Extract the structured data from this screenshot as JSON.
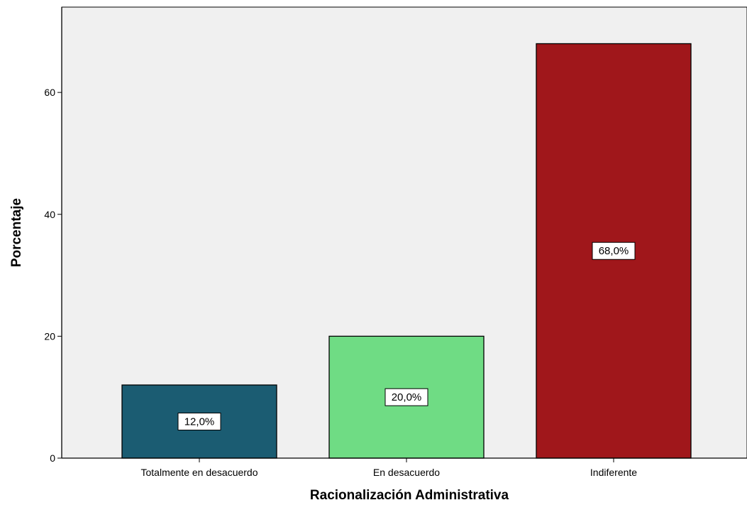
{
  "chart_data": {
    "type": "bar",
    "xlabel": "Racionalización Administrativa",
    "ylabel": "Porcentaje",
    "categories": [
      "Totalmente en desacuerdo",
      "En desacuerdo",
      "Indiferente"
    ],
    "values": [
      12.0,
      20.0,
      68.0
    ],
    "data_labels": [
      "12,0%",
      "20,0%",
      "68,0%"
    ],
    "yticks": [
      0,
      20,
      40,
      60
    ],
    "ylim": [
      0,
      74
    ],
    "colors": [
      "#1b5c72",
      "#6fdc84",
      "#a0171b"
    ],
    "plot_background": "#f0f0f0",
    "grid": false,
    "legend": "none"
  }
}
